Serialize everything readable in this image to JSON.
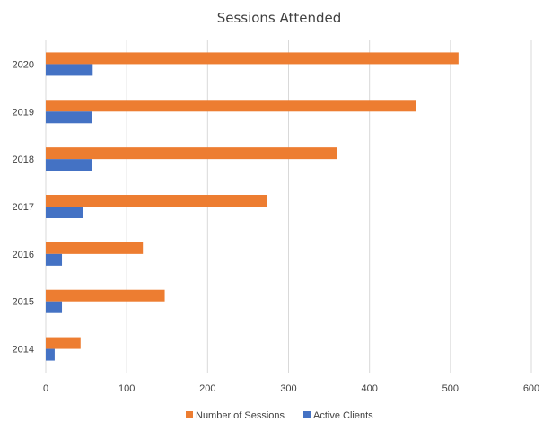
{
  "chart_data": {
    "type": "bar",
    "orientation": "horizontal",
    "title": "Sessions Attended",
    "xlabel": "",
    "ylabel": "",
    "categories": [
      "2020",
      "2019",
      "2018",
      "2017",
      "2016",
      "2015",
      "2014"
    ],
    "series": [
      {
        "name": "Number of Sessions",
        "color": "#ED7D31",
        "values": [
          510,
          457,
          360,
          273,
          120,
          147,
          43
        ]
      },
      {
        "name": "Active Clients",
        "color": "#4472C4",
        "values": [
          58,
          57,
          57,
          46,
          20,
          20,
          11
        ]
      }
    ],
    "xlim": [
      0,
      600
    ],
    "xticks": [
      0,
      100,
      200,
      300,
      400,
      500,
      600
    ],
    "grid": "vertical",
    "legend_position": "bottom"
  }
}
